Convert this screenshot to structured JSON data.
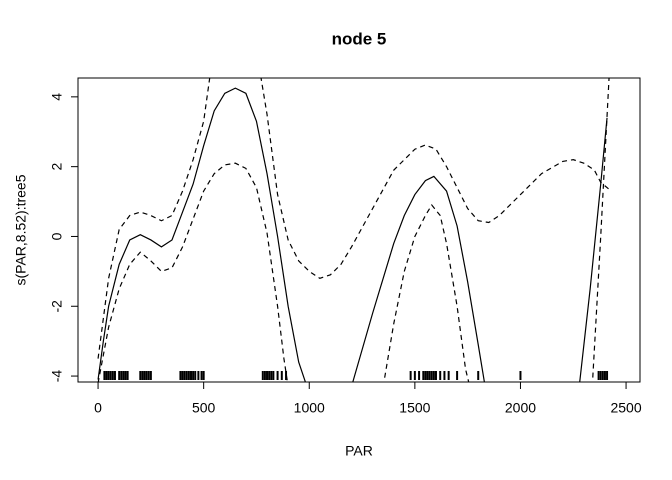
{
  "chart_data": {
    "type": "line",
    "title": "node 5",
    "x_label": "PAR",
    "y_label": "s(PAR,8.52):tree5",
    "xlim": [
      -95,
      2566
    ],
    "ylim": [
      -4.17,
      4.54
    ],
    "xticks": [
      0,
      500,
      1000,
      1500,
      2000,
      2500
    ],
    "yticks": [
      -4,
      -2,
      0,
      2,
      4
    ],
    "series": [
      {
        "name": "fit",
        "color": "#000000",
        "dash": false,
        "x": [
          0,
          25,
          50,
          100,
          150,
          200,
          250,
          300,
          350,
          400,
          450,
          500,
          550,
          600,
          650,
          700,
          750,
          800,
          850,
          900,
          950,
          1000,
          1100,
          1200,
          1300,
          1400,
          1450,
          1500,
          1550,
          1590,
          1650,
          1700,
          1750,
          1800,
          1830,
          2000,
          2280,
          2330,
          2380,
          2410
        ],
        "values": [
          -4.1,
          -3,
          -2,
          -0.8,
          -0.1,
          0.05,
          -0.1,
          -0.3,
          -0.1,
          0.7,
          1.5,
          2.6,
          3.6,
          4.1,
          4.25,
          4.1,
          3.3,
          1.8,
          0,
          -2,
          -3.6,
          -4.5,
          null,
          -4.3,
          -2.2,
          -0.2,
          0.6,
          1.2,
          1.6,
          1.72,
          1.3,
          0.3,
          -1.3,
          -3.1,
          -4.2,
          null,
          -4.2,
          -1.5,
          1.5,
          3.4
        ]
      },
      {
        "name": "upper",
        "color": "#000000",
        "dash": true,
        "x": [
          0,
          50,
          100,
          150,
          200,
          250,
          300,
          350,
          400,
          450,
          500,
          530,
          650,
          770,
          800,
          850,
          900,
          950,
          1000,
          1050,
          1100,
          1150,
          1200,
          1300,
          1400,
          1500,
          1550,
          1600,
          1650,
          1700,
          1750,
          1800,
          1850,
          1900,
          2000,
          2100,
          2200,
          2250,
          2300,
          2350,
          2380,
          2420
        ],
        "values": [
          -3.5,
          -1.2,
          0.2,
          0.6,
          0.7,
          0.6,
          0.45,
          0.6,
          1.3,
          2.2,
          3.3,
          4.6,
          null,
          4.6,
          3.5,
          1.2,
          -0.1,
          -0.7,
          -1.0,
          -1.2,
          -1.1,
          -0.8,
          -0.3,
          0.8,
          1.9,
          2.5,
          2.62,
          2.5,
          2.0,
          1.4,
          0.8,
          0.45,
          0.4,
          0.6,
          1.2,
          1.8,
          2.15,
          2.2,
          2.1,
          1.9,
          1.55,
          1.35
        ]
      },
      {
        "name": "lower",
        "color": "#000000",
        "dash": true,
        "x": [
          0,
          50,
          100,
          150,
          200,
          250,
          300,
          350,
          400,
          450,
          500,
          550,
          600,
          650,
          700,
          750,
          800,
          850,
          880,
          900,
          1100,
          1350,
          1400,
          1450,
          1500,
          1550,
          1580,
          1620,
          1650,
          1700,
          1740,
          1760,
          2000,
          2340,
          2380,
          2420
        ],
        "values": [
          -4.2,
          -2.6,
          -1.5,
          -0.8,
          -0.45,
          -0.7,
          -1.0,
          -0.9,
          -0.3,
          0.5,
          1.3,
          1.8,
          2.05,
          2.1,
          1.95,
          1.4,
          0.1,
          -2,
          -3.5,
          -4.3,
          null,
          -4.3,
          -2.5,
          -1.0,
          0.0,
          0.6,
          0.9,
          0.6,
          -0.2,
          -2,
          -3.8,
          -4.3,
          null,
          -4.3,
          0,
          4.6
        ]
      }
    ],
    "rug": [
      30,
      40,
      50,
      60,
      70,
      80,
      100,
      110,
      120,
      130,
      140,
      200,
      210,
      220,
      230,
      240,
      250,
      390,
      400,
      410,
      420,
      430,
      440,
      450,
      460,
      475,
      490,
      500,
      780,
      790,
      800,
      810,
      820,
      830,
      850,
      870,
      890,
      1480,
      1500,
      1520,
      1540,
      1550,
      1560,
      1570,
      1580,
      1590,
      1600,
      1620,
      1640,
      1660,
      1700,
      1800,
      2000,
      2370,
      2380,
      2390,
      2400,
      2410
    ]
  }
}
